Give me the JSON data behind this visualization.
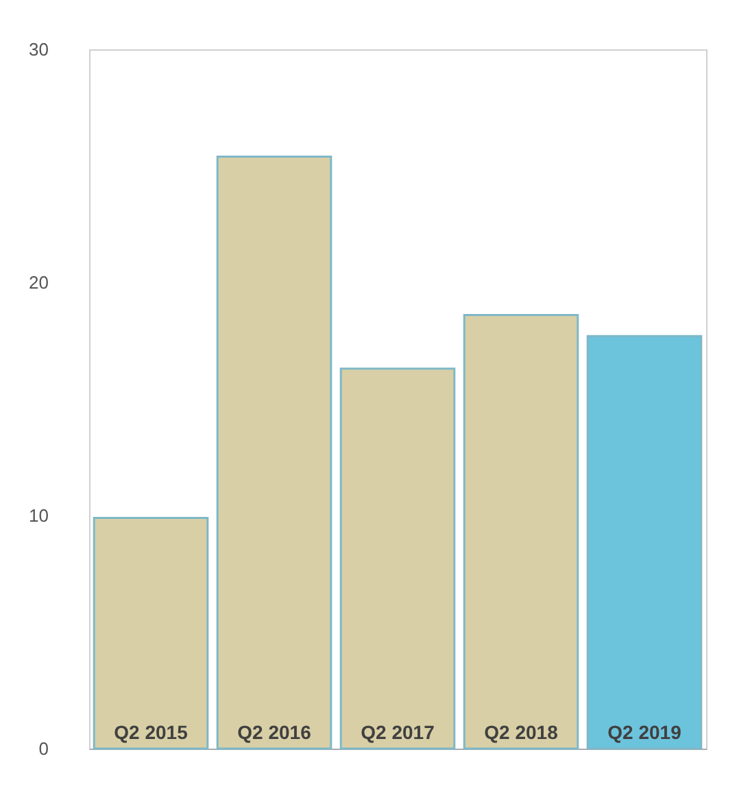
{
  "chart_data": {
    "type": "bar",
    "categories": [
      "Q2 2015",
      "Q2 2016",
      "Q2 2017",
      "Q2 2018",
      "Q2 2019"
    ],
    "values": [
      9.9,
      25.4,
      16.3,
      18.6,
      17.7
    ],
    "colors": [
      "#d8cfa6",
      "#d8cfa6",
      "#d8cfa6",
      "#d8cfa6",
      "#6cc3dc"
    ],
    "ylim": [
      0,
      30
    ],
    "yticks": [
      0,
      10,
      20,
      30
    ],
    "grid": false
  }
}
